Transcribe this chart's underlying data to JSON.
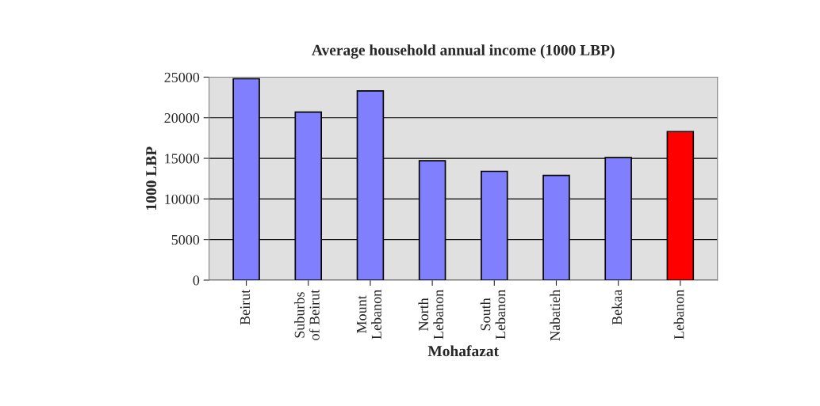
{
  "chart_data": {
    "type": "bar",
    "title": "Average household annual income (1000 LBP)",
    "xlabel": "Mohafazat",
    "ylabel": "1000 LBP",
    "categories": [
      "Beirut",
      "Suburbs\nof Beirut",
      "Mount\nLebanon",
      "North\nLebanon",
      "South\nLebanon",
      "Nabatieh",
      "Bekaa",
      "Lebanon"
    ],
    "values": [
      24800,
      20700,
      23300,
      14700,
      13400,
      12900,
      15100,
      18300
    ],
    "colors": [
      "#8080ff",
      "#8080ff",
      "#8080ff",
      "#8080ff",
      "#8080ff",
      "#8080ff",
      "#8080ff",
      "#ff0000"
    ],
    "ylim": [
      0,
      25000
    ],
    "yticks": [
      0,
      5000,
      10000,
      15000,
      20000,
      25000
    ],
    "grid": "y",
    "legend": false
  }
}
